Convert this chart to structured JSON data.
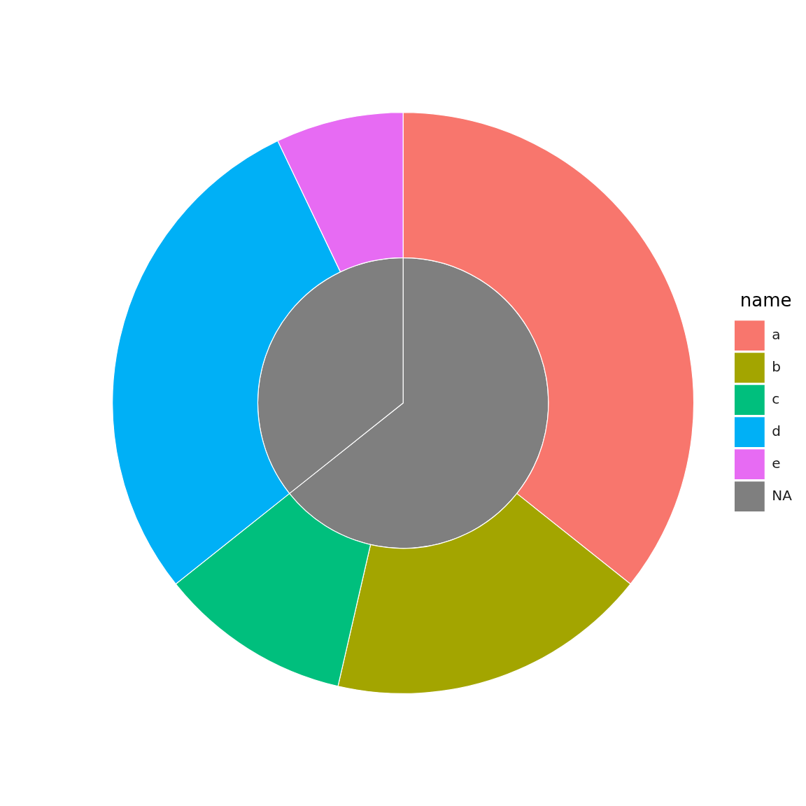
{
  "chart_data": {
    "type": "pie",
    "legend": "right",
    "legend_title": "name",
    "categories": [
      "a",
      "b",
      "c",
      "d",
      "e",
      "NA",
      null
    ],
    "colors": [
      "#f8766d",
      "#a3a500",
      "#00bf7d",
      "#00b0f6",
      "#e76bf3",
      "#7f7f7f",
      "#7f7f7f"
    ],
    "series": [
      {
        "values": [
          35.7,
          17.9,
          10.7,
          28.6,
          7.1,
          null,
          null
        ]
      },
      {
        "values": [
          null,
          null,
          null,
          null,
          null,
          64.3,
          35.7
        ]
      }
    ]
  }
}
